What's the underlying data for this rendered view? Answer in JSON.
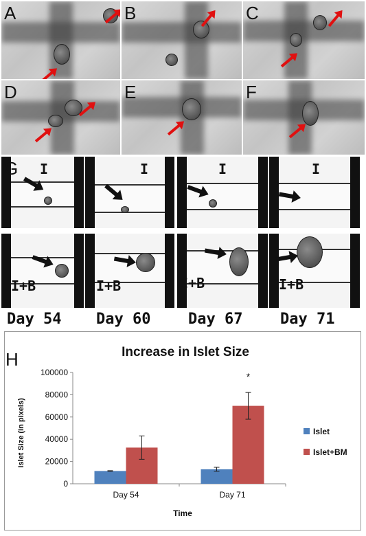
{
  "panels": {
    "a": "A",
    "b": "B",
    "c": "C",
    "d": "D",
    "e": "E",
    "f": "F",
    "g": "G",
    "h": "H"
  },
  "group_labels": {
    "islet": "I",
    "islet_bm": "I+B"
  },
  "days": [
    "Day 54",
    "Day 60",
    "Day 67",
    "Day 71"
  ],
  "colors": {
    "arrow": "#e01010",
    "islet": "#4f81bd",
    "islet_bm": "#c0504d"
  },
  "chart_data": {
    "type": "bar",
    "title": "Increase in Islet Size",
    "xlabel": "Time",
    "ylabel": "Islet Size (in pixels)",
    "categories": [
      "Day 54",
      "Day 71"
    ],
    "series": [
      {
        "name": "Islet",
        "values": [
          11500,
          13000
        ],
        "errors": [
          300,
          1800
        ],
        "color": "#4f81bd"
      },
      {
        "name": "Islet+BM",
        "values": [
          32500,
          70000
        ],
        "errors": [
          10500,
          12000
        ],
        "color": "#c0504d"
      }
    ],
    "ylim": [
      0,
      100000
    ],
    "yticks": [
      "0",
      "20000",
      "40000",
      "60000",
      "80000",
      "100000"
    ],
    "ytick_values": [
      0,
      20000,
      40000,
      60000,
      80000,
      100000
    ],
    "annotations": [
      {
        "category": "Day 71",
        "text": "*"
      }
    ],
    "legend": "right",
    "grid": false
  }
}
